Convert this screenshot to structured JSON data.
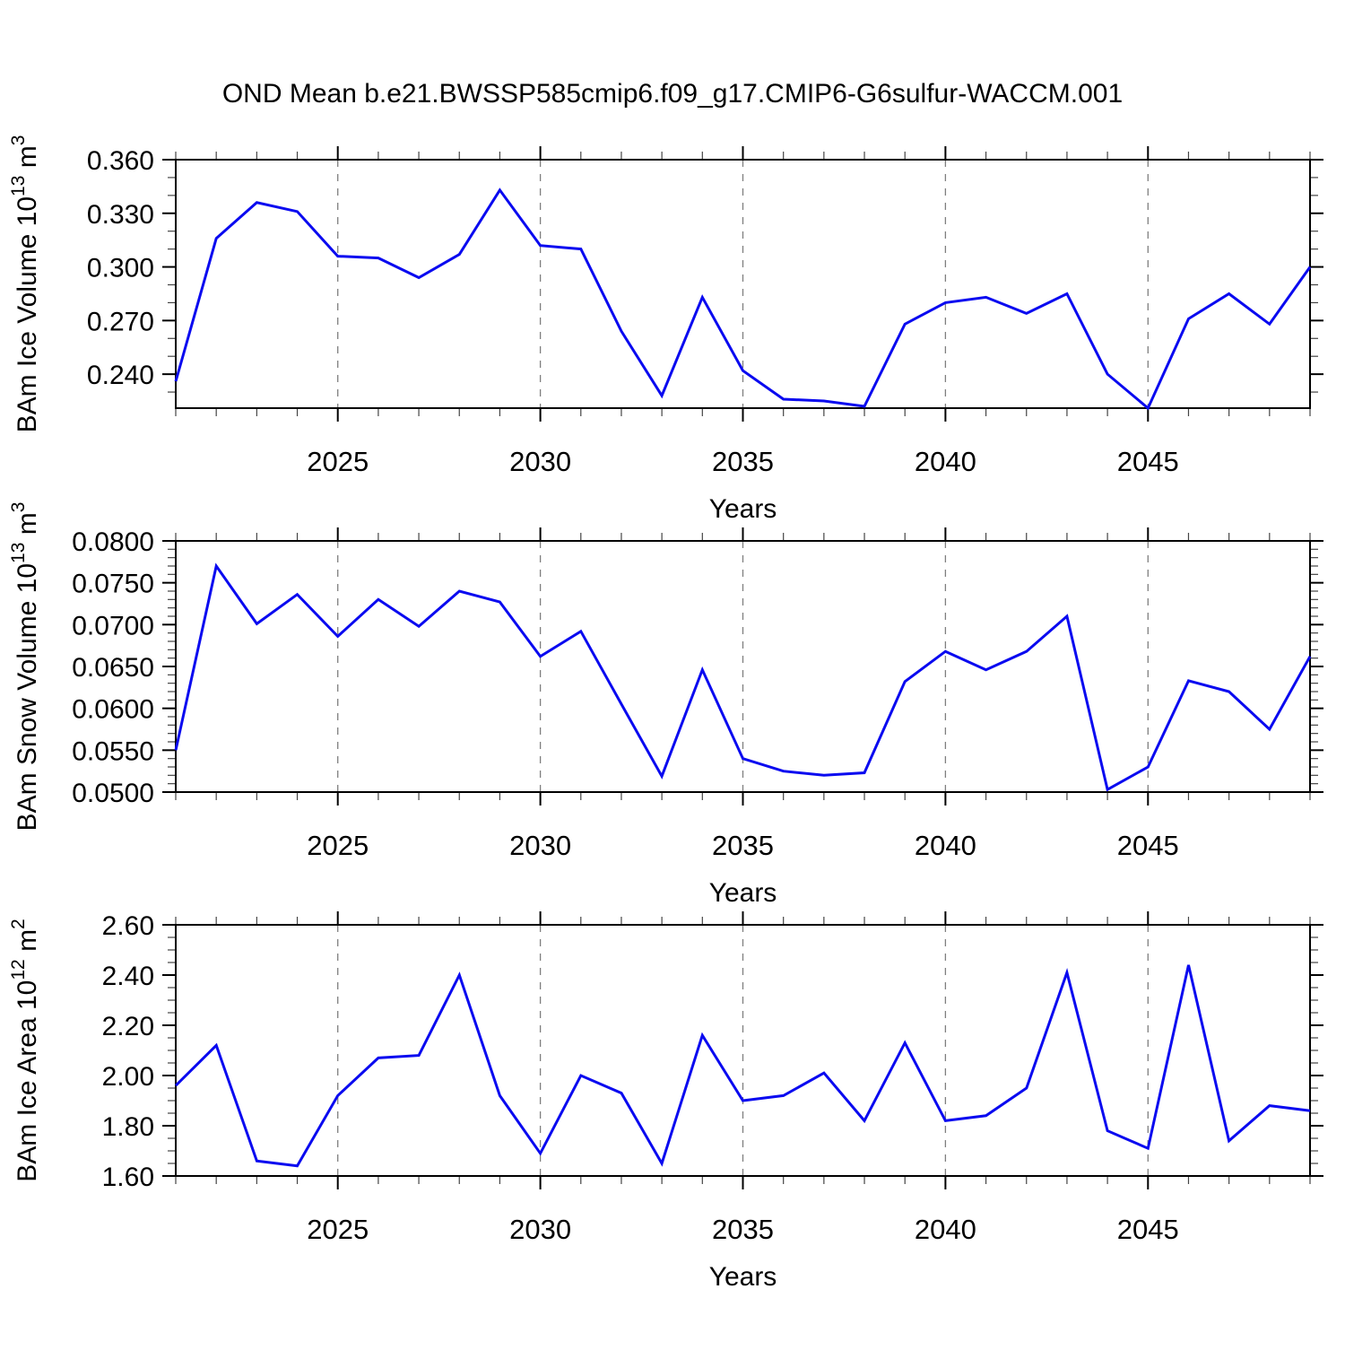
{
  "title": "OND Mean b.e21.BWSSP585cmip6.f09_g17.CMIP6-G6sulfur-WACCM.001",
  "style": {
    "line_color": "#0a0af0",
    "grid_color": "#7f7f7f",
    "axis_color": "#000000",
    "minor_tick_color": "#444444"
  },
  "chart_data": [
    {
      "id": "ice-volume",
      "type": "line",
      "ylabel_segments": [
        {
          "t": "BAm Ice Volume 10"
        },
        {
          "t": "13",
          "sup": true
        },
        {
          "t": " m"
        },
        {
          "t": "3",
          "sup": true
        }
      ],
      "xlabel": "Years",
      "x": [
        2021,
        2022,
        2023,
        2024,
        2025,
        2026,
        2027,
        2028,
        2029,
        2030,
        2031,
        2032,
        2033,
        2034,
        2035,
        2036,
        2037,
        2038,
        2039,
        2040,
        2041,
        2042,
        2043,
        2044,
        2045,
        2046,
        2047,
        2048,
        2049
      ],
      "values": [
        0.236,
        0.316,
        0.336,
        0.331,
        0.306,
        0.305,
        0.294,
        0.307,
        0.343,
        0.312,
        0.31,
        0.264,
        0.228,
        0.283,
        0.242,
        0.226,
        0.225,
        0.222,
        0.268,
        0.28,
        0.283,
        0.274,
        0.285,
        0.24,
        0.221,
        0.271,
        0.285,
        0.268,
        0.3
      ],
      "xlim": [
        2021,
        2049
      ],
      "ylim": [
        0.221,
        0.36
      ],
      "yticks": [
        0.24,
        0.27,
        0.3,
        0.33,
        0.36
      ],
      "ytick_labels": [
        "0.240",
        "0.270",
        "0.300",
        "0.330",
        "0.360"
      ],
      "y_minor_step": 0.01,
      "xticks": [
        2025,
        2030,
        2035,
        2040,
        2045
      ],
      "xtick_labels": [
        "2025",
        "2030",
        "2035",
        "2040",
        "2045"
      ],
      "grid": "dashed-vertical-at-xticks",
      "legend": null
    },
    {
      "id": "snow-volume",
      "type": "line",
      "ylabel_segments": [
        {
          "t": "BAm Snow Volume 10"
        },
        {
          "t": "13",
          "sup": true
        },
        {
          "t": " m"
        },
        {
          "t": "3",
          "sup": true
        }
      ],
      "xlabel": "Years",
      "x": [
        2021,
        2022,
        2023,
        2024,
        2025,
        2026,
        2027,
        2028,
        2029,
        2030,
        2031,
        2032,
        2033,
        2034,
        2035,
        2036,
        2037,
        2038,
        2039,
        2040,
        2041,
        2042,
        2043,
        2044,
        2045,
        2046,
        2047,
        2048,
        2049
      ],
      "values": [
        0.055,
        0.077,
        0.0701,
        0.0736,
        0.0686,
        0.073,
        0.0698,
        0.074,
        0.0727,
        0.0662,
        0.0692,
        0.0605,
        0.0519,
        0.0646,
        0.054,
        0.0525,
        0.052,
        0.0523,
        0.0632,
        0.0668,
        0.0646,
        0.0668,
        0.071,
        0.0503,
        0.053,
        0.0633,
        0.062,
        0.0575,
        0.0662
      ],
      "xlim": [
        2021,
        2049
      ],
      "ylim": [
        0.05,
        0.08
      ],
      "yticks": [
        0.05,
        0.055,
        0.06,
        0.065,
        0.07,
        0.075,
        0.08
      ],
      "ytick_labels": [
        "0.0500",
        "0.0550",
        "0.0600",
        "0.0650",
        "0.0700",
        "0.0750",
        "0.0800"
      ],
      "y_minor_step": 0.001,
      "xticks": [
        2025,
        2030,
        2035,
        2040,
        2045
      ],
      "xtick_labels": [
        "2025",
        "2030",
        "2035",
        "2040",
        "2045"
      ],
      "grid": "dashed-vertical-at-xticks",
      "legend": null
    },
    {
      "id": "ice-area",
      "type": "line",
      "ylabel_segments": [
        {
          "t": "BAm Ice Area 10"
        },
        {
          "t": "12",
          "sup": true
        },
        {
          "t": " m"
        },
        {
          "t": "2",
          "sup": true
        }
      ],
      "xlabel": "Years",
      "x": [
        2021,
        2022,
        2023,
        2024,
        2025,
        2026,
        2027,
        2028,
        2029,
        2030,
        2031,
        2032,
        2033,
        2034,
        2035,
        2036,
        2037,
        2038,
        2039,
        2040,
        2041,
        2042,
        2043,
        2044,
        2045,
        2046,
        2047,
        2048,
        2049
      ],
      "values": [
        1.96,
        2.12,
        1.66,
        1.64,
        1.92,
        2.07,
        2.08,
        2.4,
        1.92,
        1.69,
        2.0,
        1.93,
        1.65,
        2.16,
        1.9,
        1.92,
        2.01,
        1.82,
        2.13,
        1.82,
        1.84,
        1.95,
        2.41,
        1.78,
        1.71,
        2.44,
        1.74,
        1.88,
        1.86
      ],
      "xlim": [
        2021,
        2049
      ],
      "ylim": [
        1.6,
        2.6
      ],
      "yticks": [
        1.6,
        1.8,
        2.0,
        2.2,
        2.4,
        2.6
      ],
      "ytick_labels": [
        "1.60",
        "1.80",
        "2.00",
        "2.20",
        "2.40",
        "2.60"
      ],
      "y_minor_step": 0.05,
      "xticks": [
        2025,
        2030,
        2035,
        2040,
        2045
      ],
      "xtick_labels": [
        "2025",
        "2030",
        "2035",
        "2040",
        "2045"
      ],
      "grid": "dashed-vertical-at-xticks",
      "legend": null
    }
  ]
}
